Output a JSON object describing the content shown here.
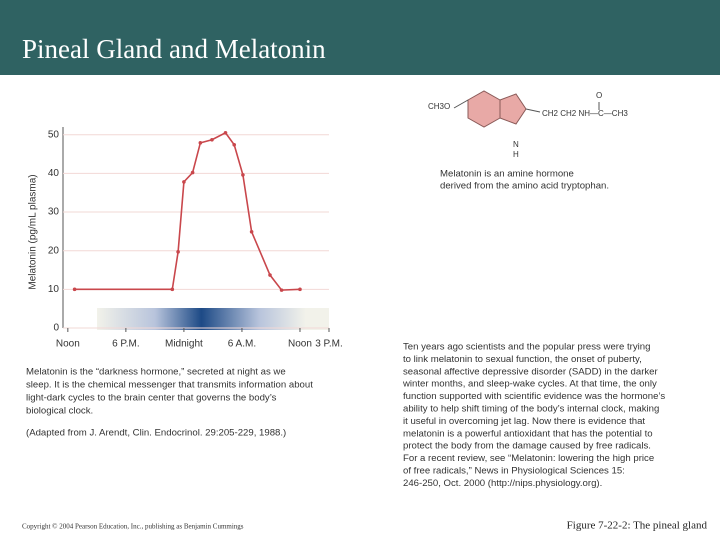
{
  "header": {
    "title": "Pineal Gland and Melatonin"
  },
  "chart_data": {
    "type": "line",
    "y_label": "Melatonin (pg/mL plasma)",
    "x": [
      0.7,
      10.8,
      11.4,
      12.0,
      12.9,
      13.7,
      14.9,
      16.3,
      17.2,
      18.1,
      19.0,
      20.9,
      22.1,
      24.0
    ],
    "series": [
      {
        "name": "Melatonin",
        "color": "#c9474c",
        "values": [
          10,
          10,
          19.7,
          37.8,
          40.2,
          47.9,
          48.7,
          50.5,
          47.4,
          39.6,
          24.9,
          13.7,
          9.8,
          10
        ]
      }
    ],
    "xlim": [
      -0.5,
      27
    ],
    "xticks": [
      {
        "value": 0,
        "label": "Noon"
      },
      {
        "value": 6,
        "label": "6 P.M."
      },
      {
        "value": 12,
        "label": "Midnight"
      },
      {
        "value": 18,
        "label": "6 A.M."
      },
      {
        "value": 24,
        "label": "Noon"
      },
      {
        "value": 27,
        "label": "3 P.M."
      }
    ],
    "ylim": [
      0,
      52
    ],
    "yticks": [
      0,
      10,
      20,
      30,
      40,
      50
    ],
    "grid": true
  },
  "caption_left": [
    "Melatonin is the “darkness hormone,” secreted at night as we",
    "sleep. It is the chemical messenger that transmits information about",
    "light-dark cycles to the brain center that governs the body’s",
    "biological clock.",
    "(Adapted from J. Arendt, Clin. Endocrinol. 29:205-229, 1988.)"
  ],
  "molecule": {
    "left": "CH3O",
    "right": "CH2 CH2 NH—C—CH3",
    "oxygen": "O",
    "n": "N",
    "h": "H"
  },
  "molecule_caption": [
    "Melatonin is an amine hormone",
    "derived from the amino acid tryptophan."
  ],
  "paragraph": [
    "Ten years ago scientists and the popular press were trying",
    "to link melatonin to sexual function, the onset of puberty,",
    "seasonal affective depressive disorder (SADD) in the darker",
    "winter months, and sleep-wake cycles. At that time, the only",
    "function supported with scientific evidence was the hormone’s",
    "ability to help shift timing of the body’s internal clock, making",
    "it useful in overcoming jet lag. Now there is evidence that",
    "melatonin is a powerful antioxidant that has the potential to",
    "protect the body from the damage caused by free radicals.",
    "For a recent review, see “Melatonin: lowering the high price",
    "of free radicals,” News in Physiological Sciences 15:",
    "246-250, Oct. 2000 (http://nips.physiology.org)."
  ],
  "footer": {
    "copyright": "Copyright © 2004 Pearson Education, Inc., publishing as Benjamin Cummings",
    "figure": "Figure 7-22-2: The pineal gland"
  }
}
